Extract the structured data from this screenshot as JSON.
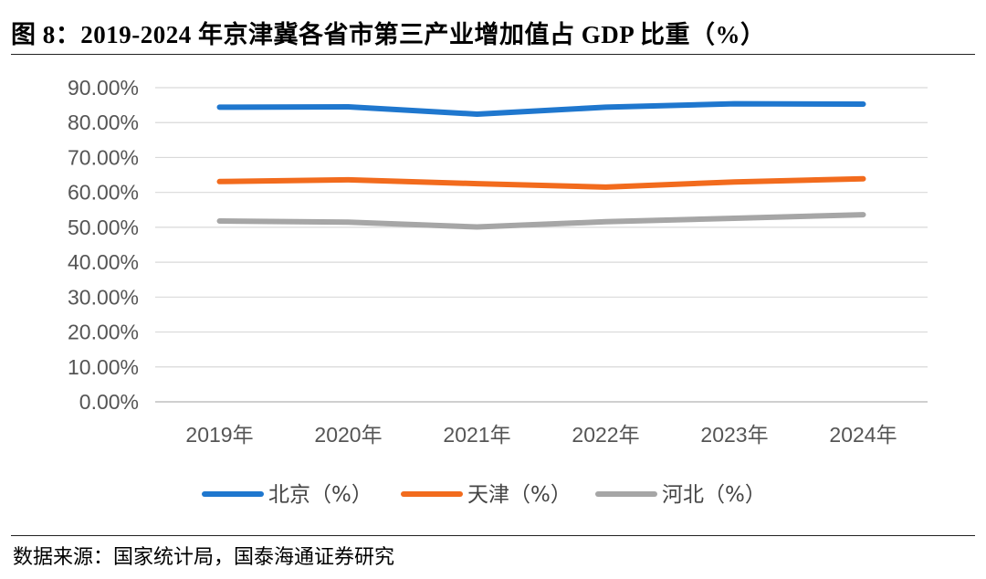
{
  "header": {
    "title": "图 8：2019-2024 年京津冀各省市第三产业增加值占 GDP 比重（%）"
  },
  "footer": {
    "source": "数据来源：国家统计局，国泰海通证券研究"
  },
  "colors": {
    "beijing": "#1F77CE",
    "tianjin": "#F26B1D",
    "hebei": "#A6A6A6",
    "grid": "#D9D9D9",
    "axis": "#BFBFBF"
  },
  "chart_data": {
    "type": "line",
    "title": "2019-2024 年京津冀各省市第三产业增加值占 GDP 比重（%）",
    "xlabel": "",
    "ylabel": "",
    "categories": [
      "2019年",
      "2020年",
      "2021年",
      "2022年",
      "2023年",
      "2024年"
    ],
    "ylim": [
      0,
      90
    ],
    "yticks": [
      0,
      10,
      20,
      30,
      40,
      50,
      60,
      70,
      80,
      90
    ],
    "ytick_labels": [
      "0.00%",
      "10.00%",
      "20.00%",
      "30.00%",
      "40.00%",
      "50.00%",
      "60.00%",
      "70.00%",
      "80.00%",
      "90.00%"
    ],
    "grid": true,
    "legend_position": "bottom",
    "series": [
      {
        "name": "北京（%）",
        "color_key": "beijing",
        "values": [
          84.4,
          84.5,
          82.4,
          84.4,
          85.4,
          85.3
        ]
      },
      {
        "name": "天津（%）",
        "color_key": "tianjin",
        "values": [
          63.1,
          63.6,
          62.5,
          61.5,
          63.0,
          63.9
        ]
      },
      {
        "name": "河北（%）",
        "color_key": "hebei",
        "values": [
          51.8,
          51.5,
          50.1,
          51.6,
          52.6,
          53.6
        ]
      }
    ]
  }
}
